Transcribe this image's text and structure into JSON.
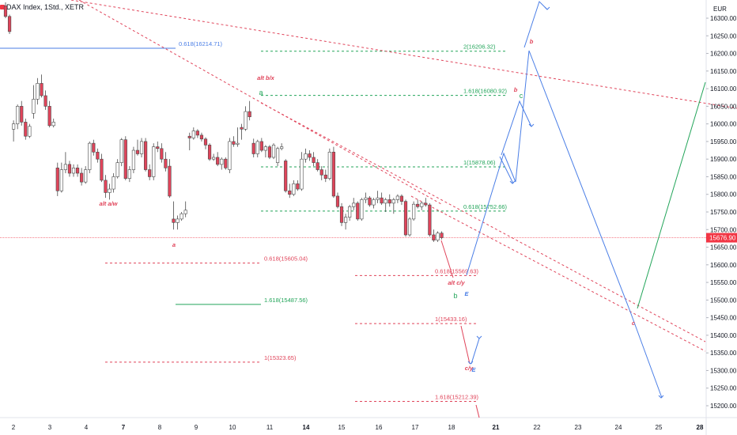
{
  "header": {
    "symbol_text": "DAX Index, 1Std., XETR"
  },
  "chart_data": {
    "type": "candlestick",
    "currency": "EUR",
    "ylim": [
      15160,
      16400
    ],
    "y_ticks": [
      16300,
      16250,
      16200,
      16150,
      16100,
      16050,
      16000,
      15950,
      15900,
      15850,
      15800,
      15750,
      15700,
      15650,
      15600,
      15550,
      15500,
      15450,
      15400,
      15350,
      15300,
      15250,
      15200
    ],
    "y_tick_labels": [
      "16300.00",
      "16250.00",
      "16200.00",
      "16150.00",
      "16100.00",
      "16050.00",
      "16000.00",
      "15950.00",
      "15900.00",
      "15850.00",
      "15800.00",
      "15750.00",
      "15700.00",
      "15650.00",
      "15600.00",
      "15550.00",
      "15500.00",
      "15450.00",
      "15400.00",
      "15350.00",
      "15300.00",
      "15250.00",
      "15200.00"
    ],
    "x_tick_labels": [
      "2",
      "3",
      "4",
      "7",
      "8",
      "9",
      "10",
      "11",
      "14",
      "15",
      "16",
      "17",
      "18",
      "21",
      "22",
      "23",
      "24",
      "25",
      "28"
    ],
    "x_tick_bold": [
      false,
      false,
      false,
      true,
      false,
      false,
      false,
      false,
      true,
      false,
      false,
      false,
      false,
      true,
      false,
      false,
      false,
      false,
      true
    ],
    "last_price": 15676.9,
    "last_price_label": "15676.90",
    "colors": {
      "up": "#ffffff",
      "down": "#e0445a",
      "border": "#4a4a4a",
      "price_line": "#f23645",
      "red_label": "#e0445a",
      "green_label": "#23a55a",
      "blue": "#4a7ee6"
    },
    "candles": [
      {
        "o": 16335,
        "h": 16345,
        "l": 16300,
        "c": 16305
      },
      {
        "o": 16305,
        "h": 16310,
        "l": 16255,
        "c": 16262
      },
      {
        "o": 15985,
        "h": 16010,
        "l": 15950,
        "c": 16000
      },
      {
        "o": 16000,
        "h": 16055,
        "l": 15985,
        "c": 16050
      },
      {
        "o": 16050,
        "h": 16065,
        "l": 15995,
        "c": 16005
      },
      {
        "o": 16005,
        "h": 16015,
        "l": 15955,
        "c": 15965
      },
      {
        "o": 15965,
        "h": 16000,
        "l": 15960,
        "c": 15993
      },
      {
        "o": 16030,
        "h": 16110,
        "l": 16015,
        "c": 16070
      },
      {
        "o": 16070,
        "h": 16130,
        "l": 16055,
        "c": 16115
      },
      {
        "o": 16115,
        "h": 16140,
        "l": 16075,
        "c": 16080
      },
      {
        "o": 16080,
        "h": 16095,
        "l": 16040,
        "c": 16050
      },
      {
        "o": 16050,
        "h": 16065,
        "l": 15990,
        "c": 15995
      },
      {
        "o": 15995,
        "h": 16015,
        "l": 15990,
        "c": 16005
      },
      {
        "o": 15875,
        "h": 15890,
        "l": 15795,
        "c": 15810
      },
      {
        "o": 15810,
        "h": 15890,
        "l": 15805,
        "c": 15870
      },
      {
        "o": 15870,
        "h": 15920,
        "l": 15860,
        "c": 15885
      },
      {
        "o": 15885,
        "h": 15895,
        "l": 15850,
        "c": 15860
      },
      {
        "o": 15860,
        "h": 15885,
        "l": 15850,
        "c": 15875
      },
      {
        "o": 15875,
        "h": 15885,
        "l": 15850,
        "c": 15860
      },
      {
        "o": 15860,
        "h": 15875,
        "l": 15825,
        "c": 15835
      },
      {
        "o": 15835,
        "h": 15880,
        "l": 15830,
        "c": 15870
      },
      {
        "o": 15870,
        "h": 15950,
        "l": 15860,
        "c": 15945
      },
      {
        "o": 15945,
        "h": 15955,
        "l": 15910,
        "c": 15920
      },
      {
        "o": 15920,
        "h": 15930,
        "l": 15890,
        "c": 15900
      },
      {
        "o": 15900,
        "h": 15915,
        "l": 15835,
        "c": 15840
      },
      {
        "o": 15840,
        "h": 15855,
        "l": 15790,
        "c": 15805
      },
      {
        "o": 15805,
        "h": 15830,
        "l": 15785,
        "c": 15815
      },
      {
        "o": 15815,
        "h": 15860,
        "l": 15805,
        "c": 15850
      },
      {
        "o": 15850,
        "h": 15900,
        "l": 15845,
        "c": 15890
      },
      {
        "o": 15890,
        "h": 15960,
        "l": 15880,
        "c": 15955
      },
      {
        "o": 15955,
        "h": 15965,
        "l": 15840,
        "c": 15845
      },
      {
        "o": 15845,
        "h": 15880,
        "l": 15835,
        "c": 15870
      },
      {
        "o": 15870,
        "h": 15935,
        "l": 15860,
        "c": 15925
      },
      {
        "o": 15925,
        "h": 15955,
        "l": 15910,
        "c": 15915
      },
      {
        "o": 15915,
        "h": 15960,
        "l": 15905,
        "c": 15950
      },
      {
        "o": 15950,
        "h": 15960,
        "l": 15865,
        "c": 15870
      },
      {
        "o": 15870,
        "h": 15885,
        "l": 15840,
        "c": 15850
      },
      {
        "o": 15850,
        "h": 15945,
        "l": 15840,
        "c": 15935
      },
      {
        "o": 15935,
        "h": 15950,
        "l": 15920,
        "c": 15930
      },
      {
        "o": 15930,
        "h": 15945,
        "l": 15890,
        "c": 15900
      },
      {
        "o": 15900,
        "h": 15920,
        "l": 15865,
        "c": 15875
      },
      {
        "o": 15880,
        "h": 15900,
        "l": 15790,
        "c": 15795
      },
      {
        "o": 15730,
        "h": 15780,
        "l": 15700,
        "c": 15720
      },
      {
        "o": 15720,
        "h": 15740,
        "l": 15700,
        "c": 15730
      },
      {
        "o": 15730,
        "h": 15750,
        "l": 15725,
        "c": 15745
      },
      {
        "o": 15745,
        "h": 15780,
        "l": 15735,
        "c": 15755
      },
      {
        "o": 15965,
        "h": 15975,
        "l": 15925,
        "c": 15960
      },
      {
        "o": 15960,
        "h": 15990,
        "l": 15955,
        "c": 15980
      },
      {
        "o": 15980,
        "h": 15985,
        "l": 15960,
        "c": 15968
      },
      {
        "o": 15968,
        "h": 15975,
        "l": 15950,
        "c": 15957
      },
      {
        "o": 15957,
        "h": 15962,
        "l": 15928,
        "c": 15940
      },
      {
        "o": 15940,
        "h": 15945,
        "l": 15895,
        "c": 15900
      },
      {
        "o": 15900,
        "h": 15915,
        "l": 15895,
        "c": 15905
      },
      {
        "o": 15905,
        "h": 15920,
        "l": 15880,
        "c": 15885
      },
      {
        "o": 15885,
        "h": 15905,
        "l": 15870,
        "c": 15900
      },
      {
        "o": 15900,
        "h": 15905,
        "l": 15870,
        "c": 15875
      },
      {
        "o": 15870,
        "h": 15960,
        "l": 15860,
        "c": 15950
      },
      {
        "o": 15950,
        "h": 15965,
        "l": 15935,
        "c": 15942
      },
      {
        "o": 15942,
        "h": 15990,
        "l": 15935,
        "c": 15945
      },
      {
        "o": 15990,
        "h": 16000,
        "l": 15955,
        "c": 15985
      },
      {
        "o": 15985,
        "h": 16050,
        "l": 15980,
        "c": 16035
      },
      {
        "o": 16035,
        "h": 16065,
        "l": 16010,
        "c": 16020
      },
      {
        "o": 15945,
        "h": 15958,
        "l": 15905,
        "c": 15915
      },
      {
        "o": 15915,
        "h": 15955,
        "l": 15905,
        "c": 15950
      },
      {
        "o": 15950,
        "h": 15960,
        "l": 15920,
        "c": 15925
      },
      {
        "o": 15925,
        "h": 15940,
        "l": 15905,
        "c": 15935
      },
      {
        "o": 15935,
        "h": 15940,
        "l": 15900,
        "c": 15905
      },
      {
        "o": 15905,
        "h": 15945,
        "l": 15900,
        "c": 15940
      },
      {
        "o": 15890,
        "h": 15935,
        "l": 15880,
        "c": 15930
      },
      {
        "o": 15930,
        "h": 15945,
        "l": 15925,
        "c": 15935
      },
      {
        "o": 15895,
        "h": 15900,
        "l": 15805,
        "c": 15810
      },
      {
        "o": 15810,
        "h": 15830,
        "l": 15790,
        "c": 15800
      },
      {
        "o": 15800,
        "h": 15840,
        "l": 15795,
        "c": 15830
      },
      {
        "o": 15830,
        "h": 15840,
        "l": 15810,
        "c": 15815
      },
      {
        "o": 15815,
        "h": 15920,
        "l": 15810,
        "c": 15900
      },
      {
        "o": 15900,
        "h": 15930,
        "l": 15890,
        "c": 15915
      },
      {
        "o": 15915,
        "h": 15925,
        "l": 15895,
        "c": 15905
      },
      {
        "o": 15905,
        "h": 15920,
        "l": 15880,
        "c": 15890
      },
      {
        "o": 15890,
        "h": 15900,
        "l": 15865,
        "c": 15870
      },
      {
        "o": 15870,
        "h": 15880,
        "l": 15840,
        "c": 15855
      },
      {
        "o": 15855,
        "h": 15870,
        "l": 15835,
        "c": 15845
      },
      {
        "o": 15845,
        "h": 15930,
        "l": 15840,
        "c": 15920
      },
      {
        "o": 15920,
        "h": 15935,
        "l": 15790,
        "c": 15795
      },
      {
        "o": 15795,
        "h": 15805,
        "l": 15760,
        "c": 15765
      },
      {
        "o": 15765,
        "h": 15775,
        "l": 15710,
        "c": 15720
      },
      {
        "o": 15720,
        "h": 15745,
        "l": 15700,
        "c": 15735
      },
      {
        "o": 15735,
        "h": 15770,
        "l": 15725,
        "c": 15765
      },
      {
        "o": 15765,
        "h": 15790,
        "l": 15755,
        "c": 15775
      },
      {
        "o": 15775,
        "h": 15780,
        "l": 15725,
        "c": 15730
      },
      {
        "o": 15730,
        "h": 15790,
        "l": 15725,
        "c": 15785
      },
      {
        "o": 15785,
        "h": 15805,
        "l": 15775,
        "c": 15790
      },
      {
        "o": 15790,
        "h": 15795,
        "l": 15765,
        "c": 15770
      },
      {
        "o": 15770,
        "h": 15790,
        "l": 15760,
        "c": 15785
      },
      {
        "o": 15785,
        "h": 15810,
        "l": 15775,
        "c": 15790
      },
      {
        "o": 15790,
        "h": 15805,
        "l": 15770,
        "c": 15775
      },
      {
        "o": 15775,
        "h": 15790,
        "l": 15750,
        "c": 15785
      },
      {
        "o": 15785,
        "h": 15800,
        "l": 15765,
        "c": 15775
      },
      {
        "o": 15775,
        "h": 15790,
        "l": 15745,
        "c": 15785
      },
      {
        "o": 15785,
        "h": 15800,
        "l": 15775,
        "c": 15795
      },
      {
        "o": 15795,
        "h": 15800,
        "l": 15770,
        "c": 15780
      },
      {
        "o": 15780,
        "h": 15785,
        "l": 15680,
        "c": 15685
      },
      {
        "o": 15685,
        "h": 15735,
        "l": 15680,
        "c": 15730
      },
      {
        "o": 15730,
        "h": 15780,
        "l": 15725,
        "c": 15772
      },
      {
        "o": 15772,
        "h": 15785,
        "l": 15760,
        "c": 15765
      },
      {
        "o": 15765,
        "h": 15780,
        "l": 15755,
        "c": 15775
      },
      {
        "o": 15775,
        "h": 15790,
        "l": 15765,
        "c": 15770
      },
      {
        "o": 15770,
        "h": 15775,
        "l": 15680,
        "c": 15685
      },
      {
        "o": 15685,
        "h": 15700,
        "l": 15665,
        "c": 15670
      },
      {
        "o": 15670,
        "h": 15695,
        "l": 15665,
        "c": 15690
      },
      {
        "o": 15690,
        "h": 15695,
        "l": 15672,
        "c": 15677
      }
    ],
    "fib_levels": [
      {
        "label": "0.618(16214.71)",
        "price": 16214.71,
        "color": "blue",
        "style": "solid"
      },
      {
        "label": "2(16206.32)",
        "price": 16206.32,
        "color": "green",
        "style": "dashed"
      },
      {
        "label": "1.618(16080.92)",
        "price": 16080.92,
        "color": "green",
        "style": "dashed"
      },
      {
        "label": "1(15878.06)",
        "price": 15878.06,
        "color": "green",
        "style": "dashed"
      },
      {
        "label": "0.618(15752.66)",
        "price": 15752.66,
        "color": "green",
        "style": "dashed"
      },
      {
        "label": "0.618(15605.04)",
        "price": 15605.04,
        "color": "red",
        "style": "dashed"
      },
      {
        "label": "0.618(15569.63)",
        "price": 15569.63,
        "color": "red",
        "style": "dashed"
      },
      {
        "label": "1.618(15487.56)",
        "price": 15487.56,
        "color": "green",
        "style": "solid"
      },
      {
        "label": "1(15433.16)",
        "price": 15433.16,
        "color": "red",
        "style": "dashed"
      },
      {
        "label": "1(15323.65)",
        "price": 15323.65,
        "color": "red",
        "style": "dashed"
      },
      {
        "label": "1.618(15212.39)",
        "price": 15212.39,
        "color": "red",
        "style": "dashed"
      }
    ],
    "wave_labels": [
      {
        "text": "alt b/x",
        "color": "red"
      },
      {
        "text": "a",
        "color": "green"
      },
      {
        "text": "alt a/w",
        "color": "red"
      },
      {
        "text": "a",
        "color": "red"
      },
      {
        "text": "alt c/y",
        "color": "red"
      },
      {
        "text": "b",
        "color": "green"
      },
      {
        "text": "E",
        "color": "blue"
      },
      {
        "text": "c/y",
        "color": "red"
      },
      {
        "text": "E",
        "color": "blue"
      },
      {
        "text": "b",
        "color": "red"
      },
      {
        "text": "b",
        "color": "red"
      },
      {
        "text": "c",
        "color": "green"
      },
      {
        "text": "c",
        "color": "red"
      }
    ]
  }
}
